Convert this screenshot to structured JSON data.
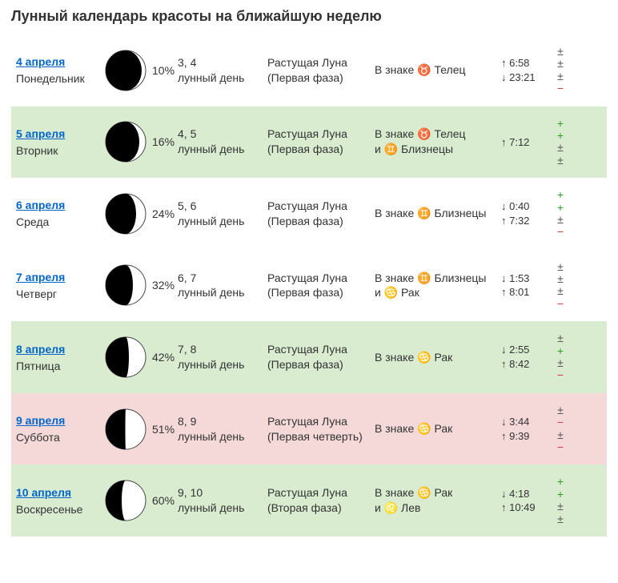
{
  "title": "Лунный календарь красоты на ближайшую неделю",
  "colors": {
    "link": "#0066cc",
    "text": "#333333",
    "bg_white": "#ffffff",
    "bg_green": "#d9ecd0",
    "bg_pink": "#f5d9d9",
    "moon_dark": "#000000",
    "moon_light": "#ffffff",
    "moon_stroke": "#444444",
    "plus": "#2e9b2e",
    "minus": "#d23c3c",
    "pm": "#555555"
  },
  "rows": [
    {
      "bg": "white",
      "date": "4 апреля",
      "weekday": "Понедельник",
      "illum": "10%",
      "illum_num": 10,
      "lunar_day_1": "3, 4",
      "lunar_day_2": "лунный день",
      "phase_1": "Растущая Луна",
      "phase_2": "(Первая фаза)",
      "sign_1": "В знаке ♉ Телец",
      "sign_2": "",
      "time_1": "↑ 6:58",
      "time_2": "↓ 23:21",
      "marks": [
        "±",
        "±",
        "±",
        "−"
      ]
    },
    {
      "bg": "green",
      "date": "5 апреля",
      "weekday": "Вторник",
      "illum": "16%",
      "illum_num": 16,
      "lunar_day_1": "4, 5",
      "lunar_day_2": "лунный день",
      "phase_1": "Растущая Луна",
      "phase_2": "(Первая фаза)",
      "sign_1": "В знаке ♉ Телец",
      "sign_2": "и ♊ Близнецы",
      "time_1": "↑ 7:12",
      "time_2": "",
      "marks": [
        "+",
        "+",
        "±",
        "±"
      ]
    },
    {
      "bg": "white",
      "date": "6 апреля",
      "weekday": "Среда",
      "illum": "24%",
      "illum_num": 24,
      "lunar_day_1": "5, 6",
      "lunar_day_2": "лунный день",
      "phase_1": "Растущая Луна",
      "phase_2": "(Первая фаза)",
      "sign_1": "В знаке ♊ Близнецы",
      "sign_2": "",
      "time_1": "↓ 0:40",
      "time_2": "↑ 7:32",
      "marks": [
        "+",
        "+",
        "±",
        "−"
      ]
    },
    {
      "bg": "white",
      "date": "7 апреля",
      "weekday": "Четверг",
      "illum": "32%",
      "illum_num": 32,
      "lunar_day_1": "6, 7",
      "lunar_day_2": "лунный день",
      "phase_1": "Растущая Луна",
      "phase_2": "(Первая фаза)",
      "sign_1": "В знаке ♊ Близнецы",
      "sign_2": "и ♋ Рак",
      "time_1": "↓ 1:53",
      "time_2": "↑ 8:01",
      "marks": [
        "±",
        "±",
        "±",
        "−"
      ]
    },
    {
      "bg": "green",
      "date": "8 апреля",
      "weekday": "Пятница",
      "illum": "42%",
      "illum_num": 42,
      "lunar_day_1": "7, 8",
      "lunar_day_2": "лунный день",
      "phase_1": "Растущая Луна",
      "phase_2": "(Первая фаза)",
      "sign_1": "В знаке ♋ Рак",
      "sign_2": "",
      "time_1": "↓ 2:55",
      "time_2": "↑ 8:42",
      "marks": [
        "±",
        "+",
        "±",
        "−"
      ]
    },
    {
      "bg": "pink",
      "date": "9 апреля",
      "weekday": "Суббота",
      "illum": "51%",
      "illum_num": 51,
      "lunar_day_1": "8, 9",
      "lunar_day_2": "лунный день",
      "phase_1": "Растущая Луна",
      "phase_2": "(Первая четверть)",
      "sign_1": "В знаке ♋ Рак",
      "sign_2": "",
      "time_1": "↓ 3:44",
      "time_2": "↑ 9:39",
      "marks": [
        "±",
        "−",
        "±",
        "−"
      ]
    },
    {
      "bg": "green",
      "date": "10 апреля",
      "weekday": "Воскресенье",
      "illum": "60%",
      "illum_num": 60,
      "lunar_day_1": "9, 10",
      "lunar_day_2": "лунный день",
      "phase_1": "Растущая Луна",
      "phase_2": "(Вторая фаза)",
      "sign_1": "В знаке ♋ Рак",
      "sign_2": "и ♌ Лев",
      "time_1": "↓ 4:18",
      "time_2": "↑ 10:49",
      "marks": [
        "+",
        "+",
        "±",
        "±"
      ]
    }
  ]
}
